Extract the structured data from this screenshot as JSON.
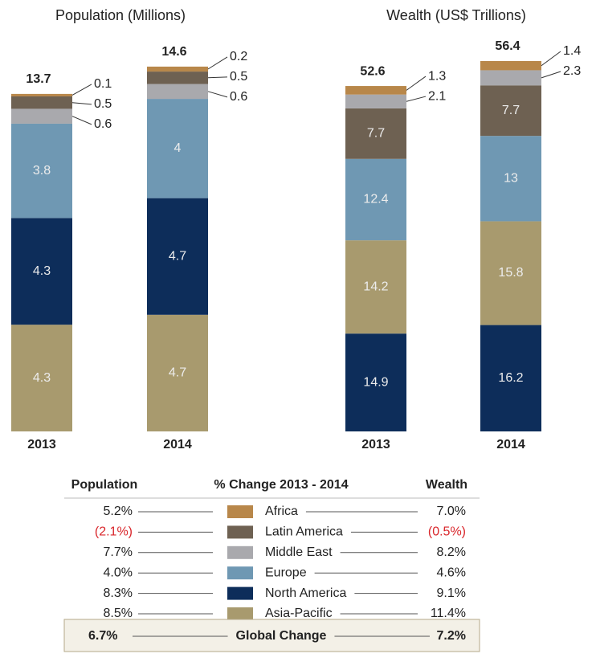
{
  "chart_data": [
    {
      "type": "bar",
      "stacked": true,
      "title": "Population (Millions)",
      "categories": [
        "2013",
        "2014"
      ],
      "totals": [
        13.7,
        14.6
      ],
      "series": [
        {
          "name": "Asia-Pacific",
          "color": "#a89a6e",
          "values": [
            4.3,
            4.7
          ]
        },
        {
          "name": "North America",
          "color": "#0d2d5a",
          "values": [
            4.3,
            4.7
          ]
        },
        {
          "name": "Europe",
          "color": "#6f98b3",
          "values": [
            3.8,
            4.0
          ]
        },
        {
          "name": "Middle East",
          "color": "#a9a9ad",
          "values": [
            0.6,
            0.6
          ]
        },
        {
          "name": "Latin America",
          "color": "#6e6152",
          "values": [
            0.5,
            0.5
          ]
        },
        {
          "name": "Africa",
          "color": "#b8874a",
          "values": [
            0.1,
            0.2
          ]
        }
      ]
    },
    {
      "type": "bar",
      "stacked": true,
      "title": "Wealth (US$ Trillions)",
      "categories": [
        "2013",
        "2014"
      ],
      "totals": [
        52.6,
        56.4
      ],
      "series": [
        {
          "name": "North America",
          "color": "#0d2d5a",
          "values": [
            14.9,
            16.2
          ]
        },
        {
          "name": "Asia-Pacific",
          "color": "#a89a6e",
          "values": [
            14.2,
            15.8
          ]
        },
        {
          "name": "Europe",
          "color": "#6f98b3",
          "values": [
            12.4,
            13.0
          ]
        },
        {
          "name": "Latin America",
          "color": "#6e6152",
          "values": [
            7.7,
            7.7
          ]
        },
        {
          "name": "Middle East",
          "color": "#a9a9ad",
          "values": [
            2.1,
            2.3
          ]
        },
        {
          "name": "Africa",
          "color": "#b8874a",
          "values": [
            1.3,
            1.4
          ]
        }
      ]
    }
  ],
  "table": {
    "headers": [
      "Population",
      "% Change 2013 - 2014",
      "Wealth"
    ],
    "rows": [
      {
        "population": "5.2%",
        "name": "Africa",
        "wealth": "7.0%"
      },
      {
        "population": "(2.1%)",
        "name": "Latin America",
        "wealth": "(0.5%)"
      },
      {
        "population": "7.7%",
        "name": "Middle East",
        "wealth": "8.2%"
      },
      {
        "population": "4.0%",
        "name": "Europe",
        "wealth": "4.6%"
      },
      {
        "population": "8.3%",
        "name": "North America",
        "wealth": "9.1%"
      },
      {
        "population": "8.5%",
        "name": "Asia-Pacific",
        "wealth": "11.4%"
      }
    ],
    "global": {
      "population": "6.7%",
      "label": "Global Change",
      "wealth": "7.2%"
    }
  }
}
